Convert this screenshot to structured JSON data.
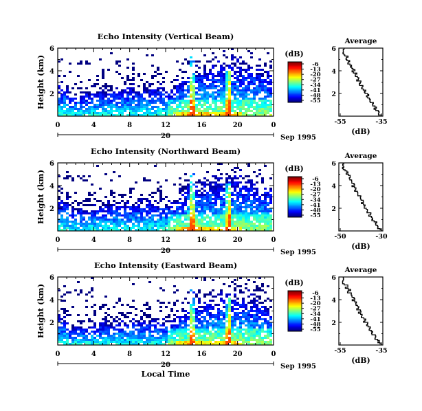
{
  "figure": {
    "xlabel": "Local Time",
    "date_label": "Sep 1995"
  },
  "chart_data": [
    {
      "type": "heatmap",
      "title": "Echo Intensity (Vertical Beam)",
      "ylabel": "Height (km)",
      "xlabel": "Local Time",
      "x_ticks": [
        "0",
        "4",
        "8",
        "12",
        "16",
        "20",
        "0"
      ],
      "y_ticks": [
        "2",
        "4",
        "6"
      ],
      "ylim": [
        0,
        6
      ],
      "date_axis": {
        "day": "20",
        "month_year": "Sep 1995"
      },
      "colorbar": {
        "unit": "(dB)",
        "ticks": [
          "-6",
          "-13",
          "-20",
          "-27",
          "-34",
          "-41",
          "-48",
          "-55"
        ]
      },
      "average_panel": {
        "title": "Average",
        "xlabel": "(dB)",
        "x_ticks": [
          "-55",
          "-35"
        ],
        "y_ticks": [
          "2",
          "4",
          "6"
        ]
      }
    },
    {
      "type": "heatmap",
      "title": "Echo Intensity (Northward Beam)",
      "ylabel": "Height (km)",
      "xlabel": "Local Time",
      "x_ticks": [
        "0",
        "4",
        "8",
        "12",
        "16",
        "20",
        "0"
      ],
      "y_ticks": [
        "2",
        "4",
        "6"
      ],
      "ylim": [
        0,
        6
      ],
      "date_axis": {
        "day": "20",
        "month_year": "Sep 1995"
      },
      "colorbar": {
        "unit": "(dB)",
        "ticks": [
          "-6",
          "-13",
          "-20",
          "-27",
          "-34",
          "-41",
          "-48",
          "-55"
        ]
      },
      "average_panel": {
        "title": "Average",
        "xlabel": "(dB)",
        "x_ticks": [
          "-50",
          "-30"
        ],
        "y_ticks": [
          "2",
          "4",
          "6"
        ]
      }
    },
    {
      "type": "heatmap",
      "title": "Echo Intensity (Eastward Beam)",
      "ylabel": "Height (km)",
      "xlabel": "Local Time",
      "x_ticks": [
        "0",
        "4",
        "8",
        "12",
        "16",
        "20",
        "0"
      ],
      "y_ticks": [
        "2",
        "4",
        "6"
      ],
      "ylim": [
        0,
        6
      ],
      "date_axis": {
        "day": "20",
        "month_year": "Sep 1995"
      },
      "colorbar": {
        "unit": "(dB)",
        "ticks": [
          "-6",
          "-13",
          "-20",
          "-27",
          "-34",
          "-41",
          "-48",
          "-55"
        ]
      },
      "average_panel": {
        "title": "Average",
        "xlabel": "(dB)",
        "x_ticks": [
          "-55",
          "-35"
        ],
        "y_ticks": [
          "2",
          "4",
          "6"
        ]
      }
    }
  ]
}
